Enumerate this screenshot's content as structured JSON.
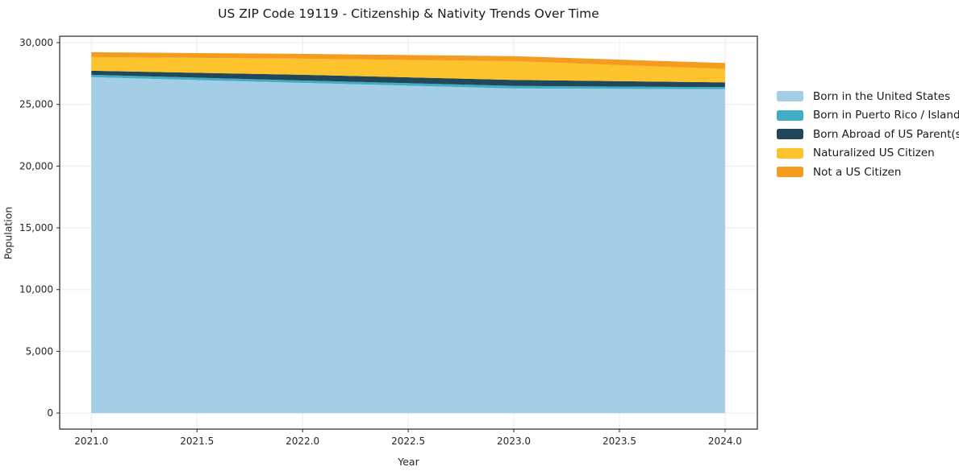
{
  "figure": {
    "background": "#ffffff"
  },
  "chart_data": {
    "type": "area",
    "stacked": true,
    "title": "US ZIP Code 19119 - Citizenship & Nativity Trends Over Time",
    "xlabel": "Year",
    "ylabel": "Population",
    "x": [
      2021,
      2022,
      2023,
      2024
    ],
    "series": [
      {
        "name": "Born in the United States",
        "color": "#A3CEE5",
        "values": [
          27200,
          26740,
          26285,
          26220
        ]
      },
      {
        "name": "Born in Puerto Rico / Islands",
        "color": "#41AEC6",
        "values": [
          195,
          195,
          215,
          175
        ]
      },
      {
        "name": "Born Abroad of US Parent(s)",
        "color": "#20485A",
        "values": [
          325,
          460,
          480,
          390
        ]
      },
      {
        "name": "Naturalized US Citizen",
        "color": "#FCC32D",
        "values": [
          1110,
          1305,
          1520,
          1085
        ]
      },
      {
        "name": "Not a US Citizen",
        "color": "#F59B20",
        "values": [
          390,
          390,
          400,
          480
        ]
      }
    ],
    "xlim": [
      2020.85,
      2024.153
    ],
    "ylim": [
      -1300,
      30520
    ],
    "xticks": {
      "values": [
        2021.0,
        2021.5,
        2022.0,
        2022.5,
        2023.0,
        2023.5,
        2024.0
      ],
      "labels": [
        "2021.0",
        "2021.5",
        "2022.0",
        "2022.5",
        "2023.0",
        "2023.5",
        "2024.0"
      ]
    },
    "yticks": {
      "values": [
        0,
        5000,
        10000,
        15000,
        20000,
        25000,
        30000
      ],
      "labels": [
        "0",
        "5,000",
        "10,000",
        "15,000",
        "20,000",
        "25,000",
        "30,000"
      ]
    },
    "grid": true,
    "grid_color": "#ebebeb",
    "axis_color": "#262626",
    "legend_position": "right"
  }
}
